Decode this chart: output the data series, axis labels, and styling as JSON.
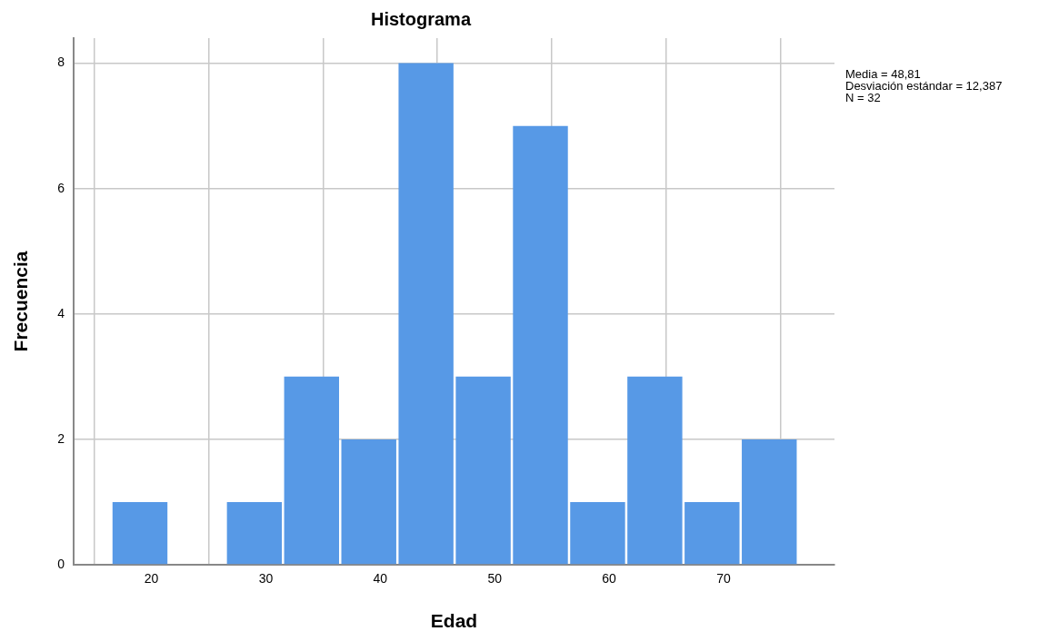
{
  "chart_data": {
    "type": "histogram",
    "title": "Histograma",
    "xlabel": "Edad",
    "ylabel": "Frecuencia",
    "bins": [
      16.5,
      21.5,
      26.5,
      31.5,
      36.5,
      41.5,
      46.5,
      51.5,
      56.5,
      61.5,
      66.5,
      71.5,
      76.5
    ],
    "values": [
      1,
      0,
      1,
      3,
      2,
      8,
      3,
      7,
      1,
      3,
      1,
      2
    ],
    "color": "#5799e6",
    "xlim": [
      13.2,
      79.7
    ],
    "xticks": [
      20,
      30,
      40,
      50,
      60,
      70
    ],
    "ylim": [
      0,
      8.4
    ],
    "yticks": [
      0,
      2,
      4,
      6,
      8
    ],
    "grid": true,
    "annotations": [
      "Media = 48,81",
      "Desviación estándar = 12,387",
      "N = 32"
    ]
  }
}
